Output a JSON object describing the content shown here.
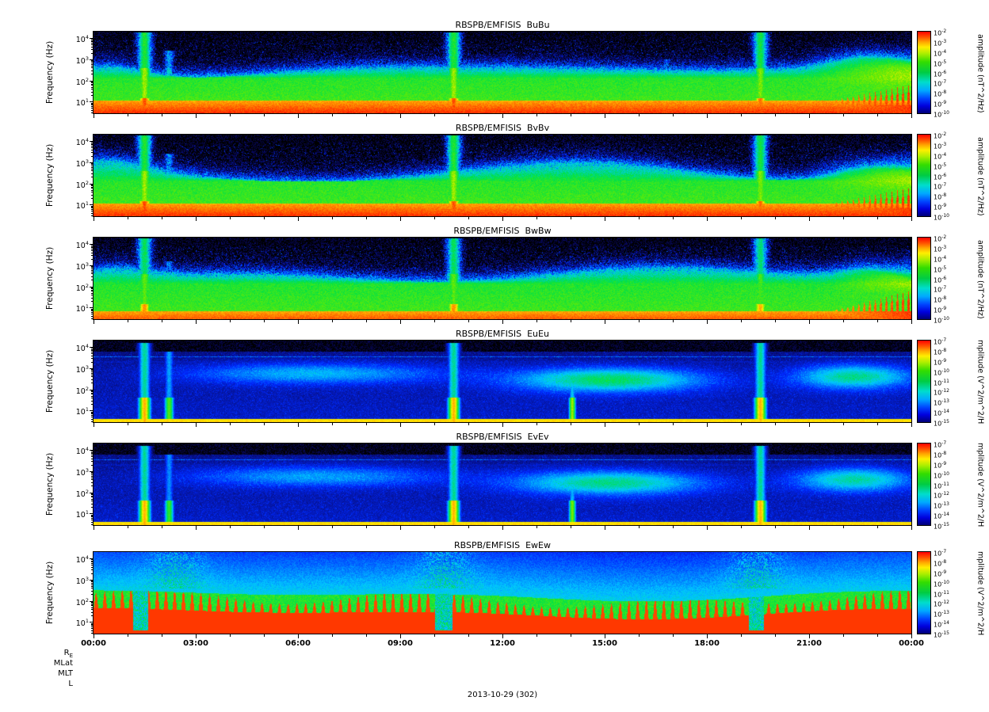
{
  "chart_data": {
    "type": "heatmap",
    "figure": "RBSPB/EMFISIS six-panel wave power spectrogram stack (magnetic BuBu/BvBv/BwBw and electric EuEu/EvEv/EwEw spectral densities vs time and frequency)",
    "date_label": "2013-10-29 (302)",
    "colormap": "rainbow: black (below minimum) -> blue -> cyan -> green -> yellow -> orange -> red (maximum)",
    "x_axis": {
      "tick_labels": [
        "00:00",
        "03:00",
        "06:00",
        "09:00",
        "12:00",
        "15:00",
        "18:00",
        "21:00",
        "00:00"
      ],
      "hours_span": 24,
      "major_tick_every_hours": 3,
      "minor_tick_every_hours": 1
    },
    "y_axis": {
      "label": "Frequency (Hz)",
      "scale": "log",
      "tick_exponents": [
        4,
        3,
        2,
        1
      ],
      "range_hz": [
        3,
        20000
      ]
    },
    "footer_axis_labels": [
      {
        "base": "R",
        "sub": "E"
      },
      {
        "base": "MLat"
      },
      {
        "base": "MLT"
      },
      {
        "base": "L"
      }
    ],
    "panels": [
      {
        "title": "RBSPB/EMFISIS  BuBu",
        "colorbar_label": "amplitude (nT^2/Hz)",
        "colorbar_tick_exponents": [
          -2,
          -3,
          -4,
          -5,
          -6,
          -7,
          -8,
          -9,
          -10
        ],
        "style": "B",
        "seed": 11,
        "bottom_band_top_log": 1.02,
        "late_start": 0.87,
        "summary": "Intense red/orange band below ~10 Hz, broad green 10-300 Hz, blue speckle to ~3 kHz, black above; strong broadband bursts near 01:30, 10:30, 19:30; enhanced yellow patch and jagged low-frequency spikes after ~21:00.",
        "events": [
          {
            "t": 0.062,
            "w": 0.006,
            "amp": 1.0,
            "top": 4.3
          },
          {
            "t": 0.092,
            "w": 0.004,
            "amp": 0.55,
            "top": 3.4
          },
          {
            "t": 0.44,
            "w": 0.006,
            "amp": 1.0,
            "top": 4.3
          },
          {
            "t": 0.7,
            "w": 0.004,
            "amp": 0.4,
            "top": 3.0
          },
          {
            "t": 0.815,
            "w": 0.006,
            "amp": 0.95,
            "top": 4.3
          }
        ]
      },
      {
        "title": "RBSPB/EMFISIS  BvBv",
        "colorbar_label": "amplitude (nT^2/Hz)",
        "colorbar_tick_exponents": [
          -2,
          -3,
          -4,
          -5,
          -6,
          -7,
          -8,
          -9,
          -10
        ],
        "style": "B",
        "seed": 22,
        "bottom_band_top_log": 1.02,
        "late_start": 0.87,
        "summary": "Very similar to BuBu: red low-frequency band, green mid-band, broadband bursts at 01:30, 10:30, 19:30, late enhancement after 21:00.",
        "events": [
          {
            "t": 0.062,
            "w": 0.006,
            "amp": 1.0,
            "top": 4.3
          },
          {
            "t": 0.092,
            "w": 0.004,
            "amp": 0.5,
            "top": 3.4
          },
          {
            "t": 0.44,
            "w": 0.006,
            "amp": 1.0,
            "top": 4.3
          },
          {
            "t": 0.7,
            "w": 0.004,
            "amp": 0.4,
            "top": 3.0
          },
          {
            "t": 0.815,
            "w": 0.006,
            "amp": 0.95,
            "top": 4.3
          }
        ]
      },
      {
        "title": "RBSPB/EMFISIS  BwBw",
        "colorbar_label": "amplitude (nT^2/Hz)",
        "colorbar_tick_exponents": [
          -2,
          -3,
          -4,
          -5,
          -6,
          -7,
          -8,
          -9,
          -10
        ],
        "style": "B",
        "seed": 33,
        "bottom_band_top_log": 0.8,
        "late_start": 0.9,
        "summary": "Like BuBu/BvBv but with a thinner orange bottom band and more uniform green mid-frequencies; bursts at 01:30, 10:30, 19:30.",
        "events": [
          {
            "t": 0.062,
            "w": 0.006,
            "amp": 0.9,
            "top": 4.3
          },
          {
            "t": 0.092,
            "w": 0.004,
            "amp": 0.45,
            "top": 3.2
          },
          {
            "t": 0.44,
            "w": 0.006,
            "amp": 0.9,
            "top": 4.3
          },
          {
            "t": 0.815,
            "w": 0.006,
            "amp": 0.85,
            "top": 4.3
          }
        ]
      },
      {
        "title": "RBSPB/EMFISIS  EuEu",
        "colorbar_label": "mplitude (V^2/m^2/H",
        "colorbar_tick_exponents": [
          -7,
          -8,
          -9,
          -10,
          -11,
          -12,
          -13,
          -14,
          -15
        ],
        "style": "E",
        "seed": 44,
        "summary": "Mostly dark with blue speckle; thin yellow line at lowest frequencies; green emission patches 100-1000 Hz in afternoon and after 21:00; narrow broadband spikes near 01:30, 10:30, 14:00, 19:30; faint horizontal line near 3-4 kHz.",
        "events": [
          {
            "t": 0.062,
            "w": 0.005,
            "amp": 1.0,
            "top": 4.2
          },
          {
            "t": 0.092,
            "w": 0.004,
            "amp": 0.7,
            "top": 3.8
          },
          {
            "t": 0.44,
            "w": 0.005,
            "amp": 1.0,
            "top": 4.2
          },
          {
            "t": 0.585,
            "w": 0.003,
            "amp": 0.8,
            "top": 2.4
          },
          {
            "t": 0.815,
            "w": 0.005,
            "amp": 1.0,
            "top": 4.2
          }
        ],
        "blobs": [
          {
            "t": 0.27,
            "st": 0.11,
            "lf": 2.75,
            "slf": 0.35,
            "amp": 0.2
          },
          {
            "t": 0.63,
            "st": 0.08,
            "lf": 2.45,
            "slf": 0.4,
            "amp": 0.33
          },
          {
            "t": 0.93,
            "st": 0.05,
            "lf": 2.6,
            "slf": 0.4,
            "amp": 0.3
          }
        ]
      },
      {
        "title": "RBSPB/EMFISIS  EvEv",
        "colorbar_label": "mplitude (V^2/m^2/H",
        "colorbar_tick_exponents": [
          -7,
          -8,
          -9,
          -10,
          -11,
          -12,
          -13,
          -14,
          -15
        ],
        "style": "E",
        "seed": 55,
        "summary": "Very similar to EuEu: dark with blue speckle, thin yellow bottom line, afternoon green patches, broadband spikes at 01:30, 10:30, 14:00, 19:30.",
        "events": [
          {
            "t": 0.062,
            "w": 0.005,
            "amp": 1.0,
            "top": 4.2
          },
          {
            "t": 0.092,
            "w": 0.004,
            "amp": 0.65,
            "top": 3.8
          },
          {
            "t": 0.44,
            "w": 0.005,
            "amp": 1.0,
            "top": 4.2
          },
          {
            "t": 0.585,
            "w": 0.003,
            "amp": 0.75,
            "top": 2.4
          },
          {
            "t": 0.815,
            "w": 0.005,
            "amp": 1.0,
            "top": 4.2
          }
        ],
        "blobs": [
          {
            "t": 0.27,
            "st": 0.11,
            "lf": 2.75,
            "slf": 0.35,
            "amp": 0.18
          },
          {
            "t": 0.63,
            "st": 0.08,
            "lf": 2.45,
            "slf": 0.4,
            "amp": 0.3
          },
          {
            "t": 0.93,
            "st": 0.05,
            "lf": 2.6,
            "slf": 0.4,
            "amp": 0.28
          }
        ]
      },
      {
        "title": "RBSPB/EMFISIS  EwEw",
        "colorbar_label": "mplitude (V^2/m^2/H",
        "colorbar_tick_exponents": [
          -7,
          -8,
          -9,
          -10,
          -11,
          -12,
          -13,
          -14,
          -15
        ],
        "style": "Ew",
        "seed": 66,
        "summary": "Saturated red comb-like interference below ~200 Hz across the whole day, cyan/blue background above; clean gaps (eclipse/maneuver) near 01:20, 10:15, 19:30 where the red band drops out.",
        "gaps": [
          {
            "t": 0.057,
            "w": 0.012
          },
          {
            "t": 0.428,
            "w": 0.014
          },
          {
            "t": 0.81,
            "w": 0.012
          }
        ]
      }
    ]
  }
}
